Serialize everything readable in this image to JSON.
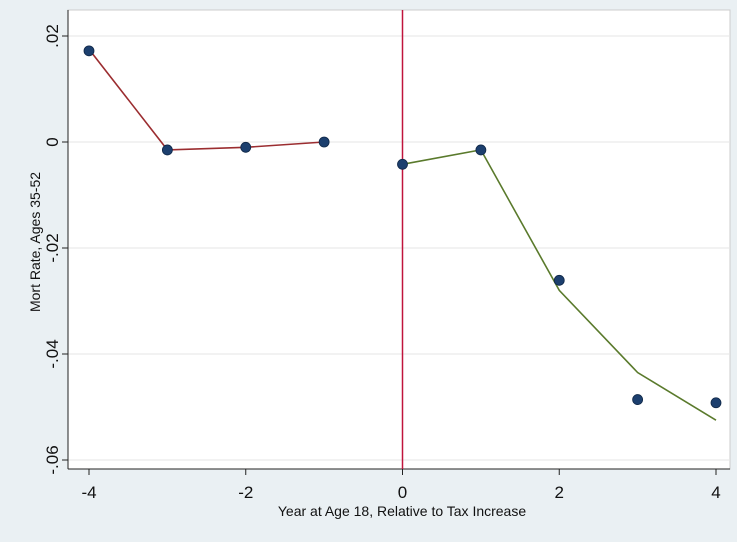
{
  "chart_data": {
    "type": "scatter",
    "title": "",
    "xlabel": "Year at Age 18, Relative to Tax Increase",
    "ylabel": "Mort Rate, Ages 35-52",
    "xlim": [
      -4,
      4
    ],
    "ylim": [
      -0.06,
      0.02
    ],
    "x_ticks": [
      {
        "value": -4,
        "label": "-4"
      },
      {
        "value": -2,
        "label": "-2"
      },
      {
        "value": 0,
        "label": "0"
      },
      {
        "value": 2,
        "label": "2"
      },
      {
        "value": 4,
        "label": "4"
      }
    ],
    "y_ticks": [
      {
        "value": 0.02,
        "label": ".02"
      },
      {
        "value": 0,
        "label": "0"
      },
      {
        "value": -0.02,
        "label": "-.02"
      },
      {
        "value": -0.04,
        "label": "-.04"
      },
      {
        "value": -0.06,
        "label": "-.06"
      }
    ],
    "grid": "horizontal",
    "points": {
      "x": [
        -4,
        -3,
        -2,
        -1,
        0,
        1,
        2,
        3,
        4
      ],
      "y": [
        0.0172,
        -0.0015,
        -0.001,
        0.0,
        -0.0042,
        -0.0015,
        -0.0261,
        -0.0486,
        -0.0492
      ],
      "color": "#1c3f6e"
    },
    "fit_lines": [
      {
        "x": [
          -4,
          -3,
          -2,
          -1
        ],
        "y": [
          0.0175,
          -0.0015,
          -0.001,
          0.0
        ],
        "color": "#9b2d30"
      },
      {
        "x": [
          0,
          1,
          2,
          3,
          4
        ],
        "y": [
          -0.0042,
          -0.0015,
          -0.028,
          -0.0435,
          -0.0525
        ],
        "color": "#5a7a2c"
      }
    ],
    "reference_line": {
      "x": 0,
      "color": "#c0143c"
    }
  }
}
